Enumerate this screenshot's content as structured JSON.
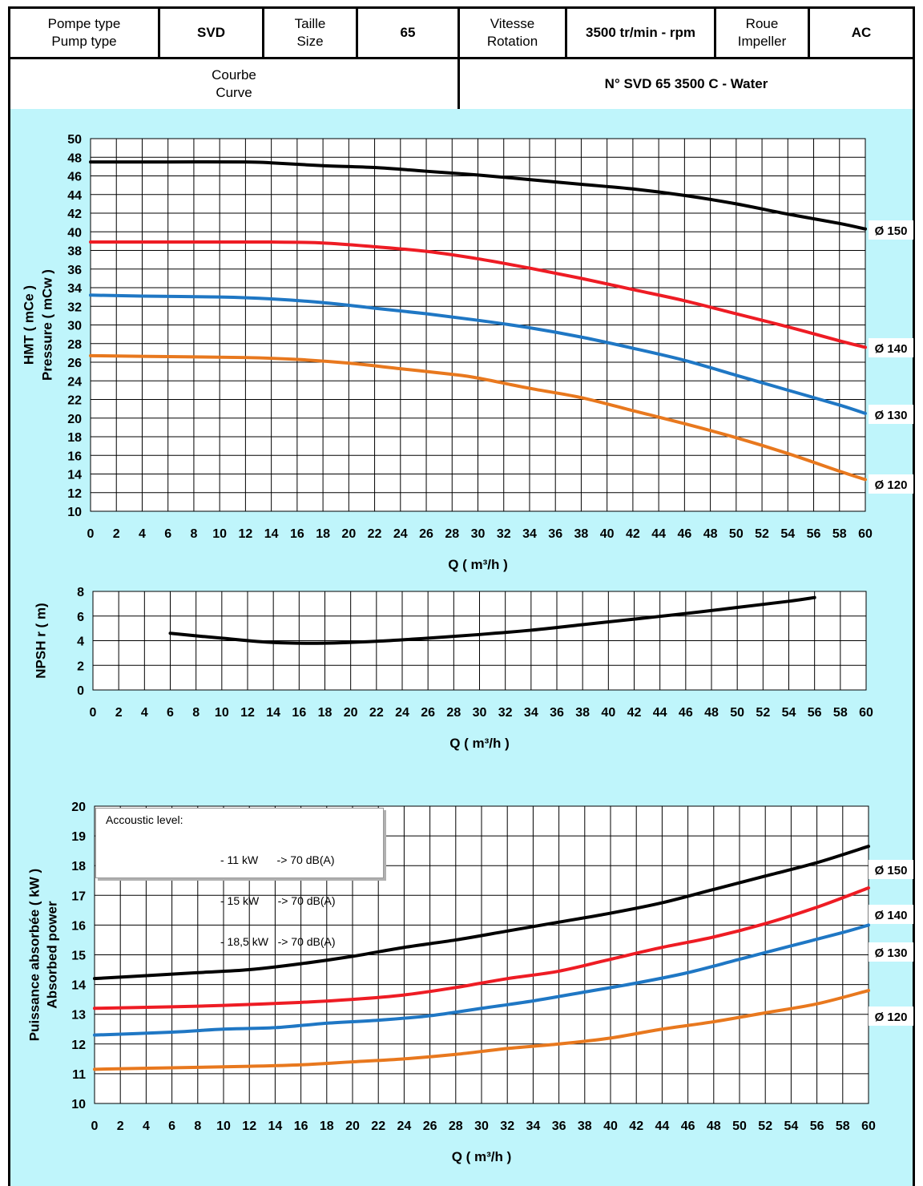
{
  "header": {
    "pump_type_label": "Pompe type\nPump type",
    "pump_type_value": "SVD",
    "size_label": "Taille\nSize",
    "size_value": "65",
    "speed_label": "Vitesse\nRotation",
    "speed_value": "3500 tr/min - rpm",
    "impeller_label": "Roue\nImpeller",
    "impeller_value": "AC",
    "curve_label": "Courbe\nCurve",
    "curve_number": "N° SVD 65 3500 C - Water"
  },
  "colors": {
    "panel_bg": "#bff5fb",
    "d150": "#000000",
    "d140": "#ee1c24",
    "d130": "#1f77c4",
    "d120": "#e8781e"
  },
  "accoustic": {
    "title": "Accoustic level:",
    "lines": [
      "- 11 kW      -> 70 dB(A)",
      "- 15 kW      -> 70 dB(A)",
      "- 18,5 kW   -> 70 dB(A)"
    ]
  },
  "chart_data": [
    {
      "type": "line",
      "ylabel": [
        "HMT ( mCe )",
        "Pressure ( mCw )"
      ],
      "xlabel": "Q ( m³/h )",
      "xlim": [
        0,
        60
      ],
      "xtick_step": 2,
      "ylim": [
        10,
        50
      ],
      "ytick_step": 2,
      "grid": true,
      "series": [
        {
          "name": "Ø 150",
          "color": "#000000",
          "x": [
            0,
            6,
            12,
            14,
            18,
            22,
            26,
            30,
            34,
            38,
            42,
            46,
            50,
            54,
            58,
            60
          ],
          "y": [
            47.5,
            47.5,
            47.5,
            47.4,
            47.1,
            46.9,
            46.5,
            46.1,
            45.6,
            45.1,
            44.6,
            43.9,
            43.0,
            41.9,
            40.9,
            40.3
          ]
        },
        {
          "name": "Ø 140",
          "color": "#ee1c24",
          "x": [
            0,
            6,
            14,
            18,
            22,
            26,
            30,
            34,
            38,
            42,
            46,
            50,
            54,
            58,
            60
          ],
          "y": [
            38.9,
            38.9,
            38.9,
            38.8,
            38.4,
            37.9,
            37.1,
            36.1,
            35.0,
            33.8,
            32.6,
            31.2,
            29.8,
            28.3,
            27.6
          ]
        },
        {
          "name": "Ø 130",
          "color": "#1f77c4",
          "x": [
            0,
            4,
            10,
            14,
            18,
            22,
            26,
            30,
            34,
            38,
            42,
            46,
            50,
            54,
            58,
            60
          ],
          "y": [
            33.2,
            33.1,
            33.0,
            32.8,
            32.4,
            31.8,
            31.2,
            30.5,
            29.7,
            28.7,
            27.5,
            26.2,
            24.6,
            23.0,
            21.4,
            20.5
          ]
        },
        {
          "name": "Ø 120",
          "color": "#e8781e",
          "x": [
            0,
            6,
            12,
            16,
            20,
            24,
            28,
            30,
            34,
            38,
            42,
            46,
            50,
            54,
            58,
            60
          ],
          "y": [
            26.7,
            26.6,
            26.5,
            26.3,
            25.9,
            25.3,
            24.7,
            24.3,
            23.2,
            22.2,
            20.8,
            19.4,
            17.9,
            16.2,
            14.3,
            13.4
          ]
        }
      ]
    },
    {
      "type": "line",
      "ylabel": [
        "NPSH r ( m)"
      ],
      "xlabel": "Q ( m³/h )",
      "xlim": [
        0,
        60
      ],
      "xtick_step": 2,
      "ylim": [
        0,
        8
      ],
      "ytick_step": 2,
      "grid": true,
      "series": [
        {
          "color": "#000000",
          "x": [
            6,
            10,
            14,
            18,
            22,
            26,
            30,
            34,
            38,
            42,
            46,
            50,
            54,
            56
          ],
          "y": [
            4.6,
            4.2,
            3.85,
            3.8,
            3.95,
            4.2,
            4.5,
            4.85,
            5.3,
            5.75,
            6.2,
            6.7,
            7.2,
            7.5
          ]
        }
      ]
    },
    {
      "type": "line",
      "ylabel": [
        "Puissance absorbée ( kW )",
        "Absorbed power"
      ],
      "xlabel": "Q ( m³/h )",
      "xlim": [
        0,
        60
      ],
      "xtick_step": 2,
      "ylim": [
        10,
        20
      ],
      "ytick_step": 1,
      "grid": true,
      "series": [
        {
          "name": "Ø 150",
          "color": "#000000",
          "x": [
            0,
            4,
            8,
            12,
            16,
            20,
            24,
            28,
            32,
            36,
            40,
            44,
            48,
            52,
            56,
            60
          ],
          "y": [
            14.2,
            14.3,
            14.4,
            14.5,
            14.7,
            14.95,
            15.25,
            15.5,
            15.8,
            16.1,
            16.4,
            16.75,
            17.2,
            17.65,
            18.1,
            18.65
          ]
        },
        {
          "name": "Ø 140",
          "color": "#ee1c24",
          "x": [
            0,
            6,
            10,
            16,
            20,
            24,
            28,
            32,
            36,
            40,
            44,
            48,
            52,
            56,
            60
          ],
          "y": [
            13.2,
            13.25,
            13.3,
            13.4,
            13.5,
            13.65,
            13.9,
            14.2,
            14.45,
            14.85,
            15.25,
            15.6,
            16.05,
            16.6,
            17.25
          ]
        },
        {
          "name": "Ø 130",
          "color": "#1f77c4",
          "x": [
            0,
            6,
            10,
            14,
            18,
            22,
            26,
            30,
            34,
            38,
            42,
            46,
            50,
            54,
            58,
            60
          ],
          "y": [
            12.3,
            12.4,
            12.5,
            12.55,
            12.7,
            12.8,
            12.95,
            13.2,
            13.45,
            13.75,
            14.05,
            14.4,
            14.85,
            15.3,
            15.75,
            16.0
          ]
        },
        {
          "name": "Ø 120",
          "color": "#e8781e",
          "x": [
            0,
            6,
            12,
            16,
            20,
            24,
            28,
            32,
            36,
            40,
            44,
            48,
            52,
            56,
            60
          ],
          "y": [
            11.15,
            11.2,
            11.25,
            11.3,
            11.4,
            11.5,
            11.65,
            11.85,
            12.0,
            12.2,
            12.5,
            12.75,
            13.05,
            13.35,
            13.8
          ]
        }
      ]
    }
  ]
}
